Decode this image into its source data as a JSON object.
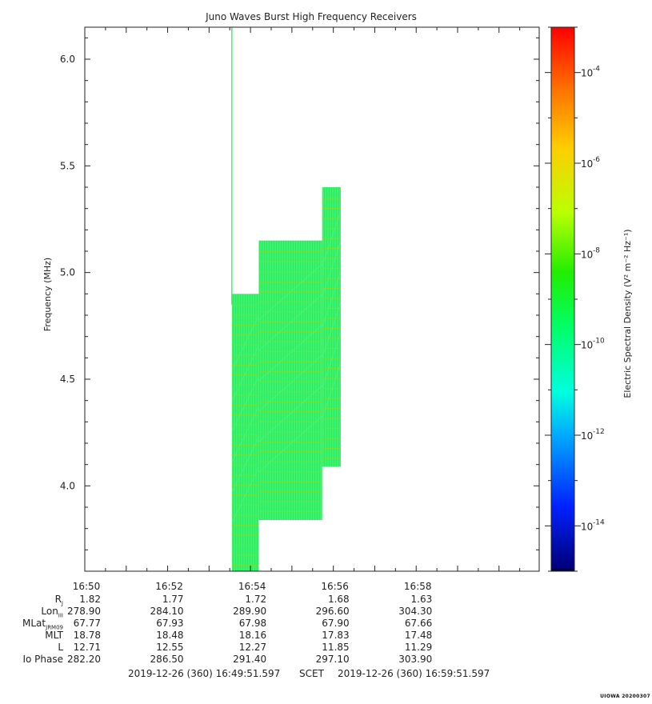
{
  "chart_data": {
    "type": "heatmap",
    "title": "Juno Waves Burst High Frequency Receivers",
    "ylabel": "Frequency (MHz)",
    "xlabel": "",
    "ylim": [
      3.6,
      6.15
    ],
    "xlim_minutes": [
      0,
      10.97
    ],
    "x_ticks": [
      {
        "minute": 0,
        "label": "16:50"
      },
      {
        "minute": 2,
        "label": "16:52"
      },
      {
        "minute": 4,
        "label": "16:54"
      },
      {
        "minute": 6,
        "label": "16:56"
      },
      {
        "minute": 8,
        "label": "16:58"
      }
    ],
    "y_ticks": [
      {
        "value": 4.0,
        "label": "4.0"
      },
      {
        "value": 4.5,
        "label": "4.5"
      },
      {
        "value": 5.0,
        "label": "5.0"
      },
      {
        "value": 5.5,
        "label": "5.5"
      },
      {
        "value": 6.0,
        "label": "6.0"
      }
    ],
    "data_blocks": [
      {
        "t_start": 3.55,
        "t_end": 4.2,
        "f_low": 3.6,
        "f_high": 4.9,
        "log_density": -10.6
      },
      {
        "t_start": 4.2,
        "t_end": 5.73,
        "f_low": 3.84,
        "f_high": 5.15,
        "log_density": -10.6
      },
      {
        "t_start": 5.73,
        "t_end": 6.18,
        "f_low": 4.09,
        "f_high": 5.4,
        "log_density": -10.6
      }
    ],
    "spike": {
      "t": 3.55,
      "f_low": 4.85,
      "f_high": 6.15,
      "log_density": -10.5
    },
    "colorbar": {
      "label": "Electric Spectral Density (V² m⁻² Hz⁻¹)",
      "log_range": [
        -15.0,
        -3.0
      ],
      "ticks": [
        {
          "exp": -4,
          "label": "-4"
        },
        {
          "exp": -6,
          "label": "-6"
        },
        {
          "exp": -8,
          "label": "-8"
        },
        {
          "exp": -10,
          "label": "-10"
        },
        {
          "exp": -12,
          "label": "-12"
        },
        {
          "exp": -14,
          "label": "-14"
        }
      ]
    }
  },
  "ephemeris": {
    "rows": [
      {
        "label": "R",
        "sub": "J",
        "values": [
          "1.82",
          "1.77",
          "1.72",
          "1.68",
          "1.63"
        ]
      },
      {
        "label": "Lon",
        "sub": "III",
        "values": [
          "278.90",
          "284.10",
          "289.90",
          "296.60",
          "304.30"
        ]
      },
      {
        "label": "MLat",
        "sub": "JRM09",
        "values": [
          "67.77",
          "67.93",
          "67.98",
          "67.90",
          "67.66"
        ]
      },
      {
        "label": "MLT",
        "sub": "",
        "values": [
          "18.78",
          "18.48",
          "18.16",
          "17.83",
          "17.48"
        ]
      },
      {
        "label": "L",
        "sub": "",
        "values": [
          "12.71",
          "12.55",
          "12.27",
          "11.85",
          "11.29"
        ]
      },
      {
        "label": "Io Phase",
        "sub": "",
        "values": [
          "282.20",
          "286.50",
          "291.40",
          "297.10",
          "303.90"
        ]
      }
    ]
  },
  "scet": {
    "start": "2019-12-26 (360) 16:49:51.597",
    "label": "SCET",
    "end": "2019-12-26 (360) 16:59:51.597"
  },
  "stamp": "UIOWA 20200307"
}
